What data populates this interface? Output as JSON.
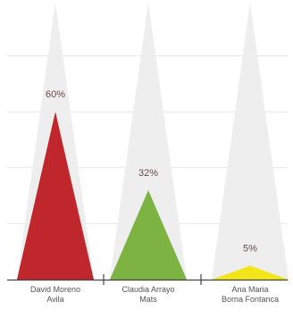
{
  "chart_data": {
    "type": "bar",
    "categories": [
      [
        "David Moreno",
        "Avila"
      ],
      [
        "Claudia Arrayo",
        "Mats"
      ],
      [
        "Ana Maria",
        "Borna Fontanca"
      ]
    ],
    "values": [
      60,
      32,
      5
    ],
    "value_labels": [
      "60%",
      "32%",
      "5%"
    ],
    "ylim": [
      0,
      100
    ],
    "grid": true,
    "bar_shape": "triangle",
    "colors": {
      "bars": [
        "#c0272d",
        "#7cb342",
        "#f2e51a"
      ],
      "background_peaks": "#eeeeee",
      "grid": "#e6e6e6",
      "axis": "#444444"
    }
  }
}
